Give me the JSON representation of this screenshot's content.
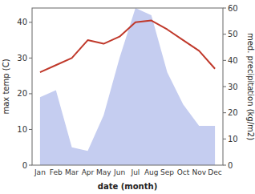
{
  "chart_data": {
    "type": "line",
    "xlabel": "date (month)",
    "ylabel": "max temp (C)",
    "y2label": "med. precipitation (kg/m2)",
    "categories": [
      "Jan",
      "Feb",
      "Mar",
      "Apr",
      "May",
      "Jun",
      "Jul",
      "Aug",
      "Sep",
      "Oct",
      "Nov",
      "Dec"
    ],
    "series": [
      {
        "type": "area",
        "color": "#c5cdf0",
        "values": [
          19,
          21,
          5,
          4,
          14,
          30,
          44,
          42,
          26,
          17,
          11,
          11
        ]
      },
      {
        "type": "line",
        "color": "#c0392b",
        "values": [
          26,
          28,
          30,
          35,
          34,
          36,
          40,
          40.5,
          38,
          35,
          32,
          27
        ]
      }
    ],
    "ylim": [
      0,
      44
    ],
    "yticks": [
      0,
      10,
      20,
      30,
      40
    ],
    "y2lim": [
      0,
      60
    ],
    "y2ticks": [
      0,
      10,
      20,
      30,
      40,
      50,
      60
    ],
    "grid": false
  }
}
